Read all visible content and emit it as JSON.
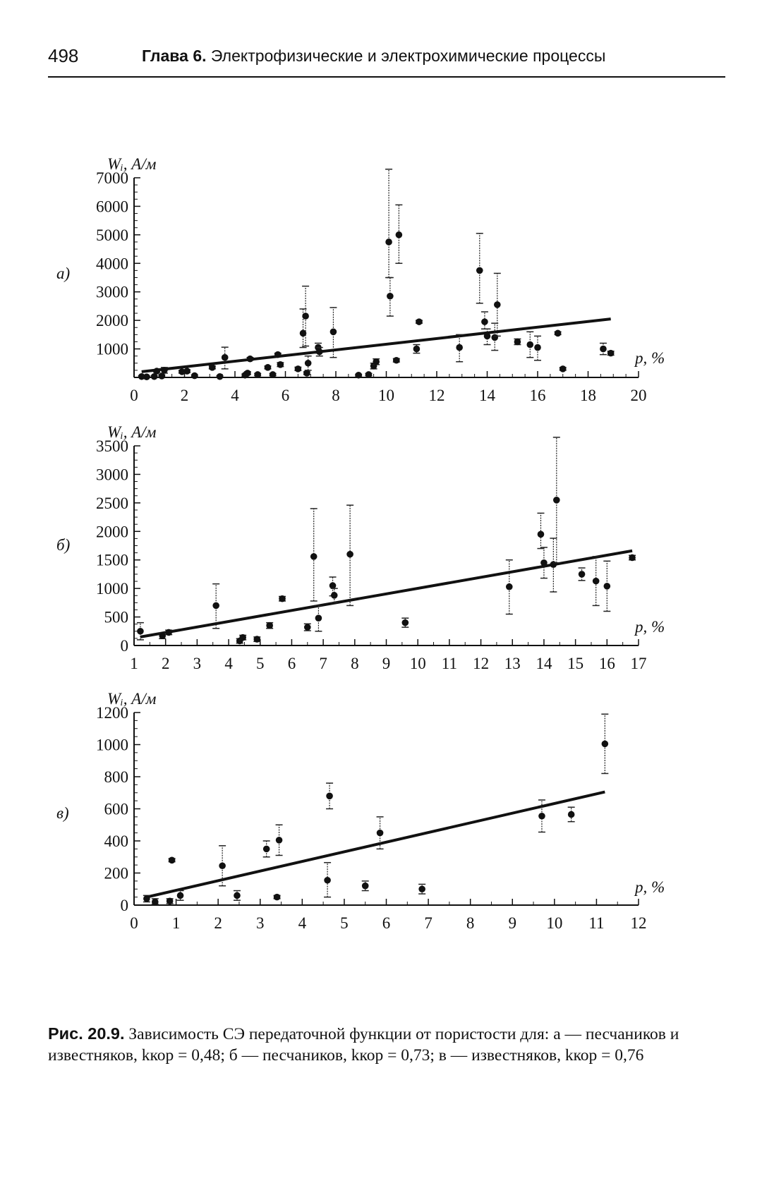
{
  "header": {
    "page_number": "498",
    "chapter_label": "Глава 6.",
    "chapter_title": "Электрофизические и электрохимические процессы"
  },
  "chart_data": [
    {
      "panel": "а)",
      "type": "scatter",
      "ylabel": "Wᵢ, А/м",
      "xlabel": "p, %",
      "xlim": [
        0,
        20
      ],
      "ylim": [
        0,
        7000
      ],
      "xticks": [
        "0",
        "2",
        "4",
        "6",
        "8",
        "10",
        "12",
        "14",
        "16",
        "18",
        "20"
      ],
      "yticks": [
        "1000",
        "2000",
        "3000",
        "4000",
        "5000",
        "6000",
        "7000"
      ],
      "points": [
        {
          "x": 0.3,
          "y": 30,
          "lo": 10,
          "hi": 60
        },
        {
          "x": 0.5,
          "y": 20,
          "lo": 5,
          "hi": 40
        },
        {
          "x": 0.8,
          "y": 30,
          "lo": 10,
          "hi": 60
        },
        {
          "x": 0.9,
          "y": 220,
          "lo": 180,
          "hi": 260
        },
        {
          "x": 1.1,
          "y": 50,
          "lo": 20,
          "hi": 90
        },
        {
          "x": 1.2,
          "y": 250,
          "lo": 150,
          "hi": 350
        },
        {
          "x": 1.9,
          "y": 200,
          "lo": 150,
          "hi": 250
        },
        {
          "x": 2.1,
          "y": 220,
          "lo": 170,
          "hi": 270
        },
        {
          "x": 2.4,
          "y": 60,
          "lo": 30,
          "hi": 90
        },
        {
          "x": 3.1,
          "y": 350,
          "lo": 300,
          "hi": 400
        },
        {
          "x": 3.4,
          "y": 30,
          "lo": 10,
          "hi": 60
        },
        {
          "x": 3.6,
          "y": 700,
          "lo": 300,
          "hi": 1060
        },
        {
          "x": 4.4,
          "y": 80,
          "lo": 40,
          "hi": 120
        },
        {
          "x": 4.5,
          "y": 150,
          "lo": 100,
          "hi": 200
        },
        {
          "x": 4.6,
          "y": 650,
          "lo": 600,
          "hi": 700
        },
        {
          "x": 4.9,
          "y": 100,
          "lo": 60,
          "hi": 140
        },
        {
          "x": 5.3,
          "y": 350,
          "lo": 300,
          "hi": 400
        },
        {
          "x": 5.5,
          "y": 100,
          "lo": 60,
          "hi": 140
        },
        {
          "x": 5.7,
          "y": 800,
          "lo": 750,
          "hi": 850
        },
        {
          "x": 5.8,
          "y": 450,
          "lo": 380,
          "hi": 520
        },
        {
          "x": 6.5,
          "y": 300,
          "lo": 240,
          "hi": 360
        },
        {
          "x": 6.7,
          "y": 1550,
          "lo": 1050,
          "hi": 2400
        },
        {
          "x": 6.8,
          "y": 2150,
          "lo": 1100,
          "hi": 3200
        },
        {
          "x": 6.85,
          "y": 150,
          "lo": 100,
          "hi": 200
        },
        {
          "x": 6.9,
          "y": 500,
          "lo": 250,
          "hi": 750
        },
        {
          "x": 7.3,
          "y": 1050,
          "lo": 850,
          "hi": 1200
        },
        {
          "x": 7.35,
          "y": 900,
          "lo": 750,
          "hi": 1050
        },
        {
          "x": 7.9,
          "y": 1600,
          "lo": 700,
          "hi": 2450
        },
        {
          "x": 8.9,
          "y": 80,
          "lo": 50,
          "hi": 110
        },
        {
          "x": 9.3,
          "y": 100,
          "lo": 60,
          "hi": 140
        },
        {
          "x": 9.5,
          "y": 400,
          "lo": 300,
          "hi": 500
        },
        {
          "x": 9.6,
          "y": 550,
          "lo": 450,
          "hi": 650
        },
        {
          "x": 10.1,
          "y": 4750,
          "lo": 3500,
          "hi": 7300
        },
        {
          "x": 10.15,
          "y": 2850,
          "lo": 2150,
          "hi": 3500
        },
        {
          "x": 10.4,
          "y": 600,
          "lo": 540,
          "hi": 660
        },
        {
          "x": 10.5,
          "y": 5000,
          "lo": 4000,
          "hi": 6050
        },
        {
          "x": 11.2,
          "y": 1000,
          "lo": 850,
          "hi": 1150
        },
        {
          "x": 11.3,
          "y": 1950,
          "lo": 1900,
          "hi": 2000
        },
        {
          "x": 12.9,
          "y": 1050,
          "lo": 550,
          "hi": 1500
        },
        {
          "x": 13.7,
          "y": 3750,
          "lo": 2600,
          "hi": 5050
        },
        {
          "x": 13.9,
          "y": 1950,
          "lo": 1700,
          "hi": 2300
        },
        {
          "x": 14.0,
          "y": 1450,
          "lo": 1150,
          "hi": 1700
        },
        {
          "x": 14.3,
          "y": 1400,
          "lo": 950,
          "hi": 1900
        },
        {
          "x": 14.4,
          "y": 2550,
          "lo": 1450,
          "hi": 3650
        },
        {
          "x": 15.2,
          "y": 1250,
          "lo": 1150,
          "hi": 1350
        },
        {
          "x": 15.7,
          "y": 1150,
          "lo": 700,
          "hi": 1600
        },
        {
          "x": 16.0,
          "y": 1050,
          "lo": 600,
          "hi": 1450
        },
        {
          "x": 16.8,
          "y": 1550,
          "lo": 1500,
          "hi": 1600
        },
        {
          "x": 17.0,
          "y": 300,
          "lo": 250,
          "hi": 350
        },
        {
          "x": 18.6,
          "y": 1000,
          "lo": 800,
          "hi": 1200
        },
        {
          "x": 18.9,
          "y": 850,
          "lo": 780,
          "hi": 920
        }
      ],
      "trend": [
        {
          "x": 0.3,
          "y": 200
        },
        {
          "x": 18.9,
          "y": 2050
        }
      ]
    },
    {
      "panel": "б)",
      "type": "scatter",
      "ylabel": "Wᵢ, А/м",
      "xlabel": "p, %",
      "xlim": [
        1,
        17
      ],
      "ylim": [
        0,
        3500
      ],
      "xticks": [
        "1",
        "2",
        "3",
        "4",
        "5",
        "6",
        "7",
        "8",
        "9",
        "10",
        "11",
        "12",
        "13",
        "14",
        "15",
        "16",
        "17"
      ],
      "yticks": [
        "0",
        "500",
        "1000",
        "1500",
        "2000",
        "2500",
        "3000",
        "3500"
      ],
      "points": [
        {
          "x": 1.2,
          "y": 250,
          "lo": 100,
          "hi": 400
        },
        {
          "x": 1.9,
          "y": 170,
          "lo": 120,
          "hi": 220
        },
        {
          "x": 2.1,
          "y": 230,
          "lo": 190,
          "hi": 270
        },
        {
          "x": 3.6,
          "y": 700,
          "lo": 300,
          "hi": 1080
        },
        {
          "x": 4.35,
          "y": 80,
          "lo": 40,
          "hi": 120
        },
        {
          "x": 4.45,
          "y": 140,
          "lo": 100,
          "hi": 180
        },
        {
          "x": 4.9,
          "y": 110,
          "lo": 70,
          "hi": 150
        },
        {
          "x": 5.3,
          "y": 350,
          "lo": 300,
          "hi": 400
        },
        {
          "x": 5.7,
          "y": 820,
          "lo": 780,
          "hi": 860
        },
        {
          "x": 6.5,
          "y": 320,
          "lo": 260,
          "hi": 380
        },
        {
          "x": 6.7,
          "y": 1560,
          "lo": 780,
          "hi": 2400
        },
        {
          "x": 6.85,
          "y": 480,
          "lo": 250,
          "hi": 700
        },
        {
          "x": 7.3,
          "y": 1050,
          "lo": 870,
          "hi": 1200
        },
        {
          "x": 7.35,
          "y": 880,
          "lo": 750,
          "hi": 1000
        },
        {
          "x": 7.85,
          "y": 1600,
          "lo": 700,
          "hi": 2460
        },
        {
          "x": 9.6,
          "y": 400,
          "lo": 320,
          "hi": 480
        },
        {
          "x": 12.9,
          "y": 1030,
          "lo": 550,
          "hi": 1500
        },
        {
          "x": 13.9,
          "y": 1950,
          "lo": 1700,
          "hi": 2320
        },
        {
          "x": 14.0,
          "y": 1450,
          "lo": 1180,
          "hi": 1720
        },
        {
          "x": 14.3,
          "y": 1420,
          "lo": 940,
          "hi": 1880
        },
        {
          "x": 14.4,
          "y": 2550,
          "lo": 1450,
          "hi": 3650
        },
        {
          "x": 15.2,
          "y": 1250,
          "lo": 1140,
          "hi": 1360
        },
        {
          "x": 15.65,
          "y": 1130,
          "lo": 700,
          "hi": 1560
        },
        {
          "x": 16.0,
          "y": 1040,
          "lo": 600,
          "hi": 1480
        },
        {
          "x": 16.8,
          "y": 1540,
          "lo": 1500,
          "hi": 1580
        }
      ],
      "trend": [
        {
          "x": 1.2,
          "y": 150
        },
        {
          "x": 16.8,
          "y": 1660
        }
      ]
    },
    {
      "panel": "в)",
      "type": "scatter",
      "ylabel": "Wᵢ, А/м",
      "xlabel": "p, %",
      "xlim": [
        0,
        12
      ],
      "ylim": [
        0,
        1200
      ],
      "xticks": [
        "0",
        "1",
        "2",
        "3",
        "4",
        "5",
        "6",
        "7",
        "8",
        "9",
        "10",
        "11",
        "12"
      ],
      "yticks": [
        "0",
        "200",
        "400",
        "600",
        "800",
        "1000",
        "1200"
      ],
      "points": [
        {
          "x": 0.3,
          "y": 40,
          "lo": 20,
          "hi": 60
        },
        {
          "x": 0.5,
          "y": 20,
          "lo": 5,
          "hi": 40
        },
        {
          "x": 0.85,
          "y": 25,
          "lo": 10,
          "hi": 40
        },
        {
          "x": 0.9,
          "y": 280,
          "lo": 270,
          "hi": 290
        },
        {
          "x": 1.1,
          "y": 60,
          "lo": 30,
          "hi": 90
        },
        {
          "x": 2.1,
          "y": 245,
          "lo": 120,
          "hi": 370
        },
        {
          "x": 2.45,
          "y": 60,
          "lo": 30,
          "hi": 90
        },
        {
          "x": 3.15,
          "y": 350,
          "lo": 300,
          "hi": 400
        },
        {
          "x": 3.4,
          "y": 50,
          "lo": 40,
          "hi": 60
        },
        {
          "x": 3.45,
          "y": 405,
          "lo": 310,
          "hi": 500
        },
        {
          "x": 4.6,
          "y": 155,
          "lo": 50,
          "hi": 265
        },
        {
          "x": 4.65,
          "y": 680,
          "lo": 600,
          "hi": 760
        },
        {
          "x": 5.5,
          "y": 120,
          "lo": 90,
          "hi": 150
        },
        {
          "x": 5.85,
          "y": 450,
          "lo": 350,
          "hi": 550
        },
        {
          "x": 6.85,
          "y": 100,
          "lo": 70,
          "hi": 130
        },
        {
          "x": 9.7,
          "y": 555,
          "lo": 455,
          "hi": 655
        },
        {
          "x": 10.4,
          "y": 565,
          "lo": 520,
          "hi": 610
        },
        {
          "x": 11.2,
          "y": 1005,
          "lo": 820,
          "hi": 1190
        }
      ],
      "trend": [
        {
          "x": 0.3,
          "y": 50
        },
        {
          "x": 11.2,
          "y": 705
        }
      ]
    }
  ],
  "caption": {
    "label": "Рис. 20.9.",
    "text": "Зависимость СЭ передаточной функции от пористости для: а — песчаников и известняков, kкор = 0,48; б — песчаников, kкор = 0,73; в — известняков, kкор = 0,76"
  }
}
